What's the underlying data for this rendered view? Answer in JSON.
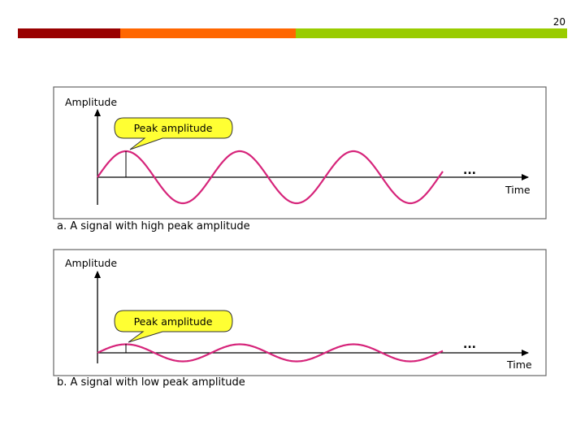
{
  "slide": {
    "page_number": "20"
  },
  "header_bar_colors": [
    "#990000",
    "#ff6600",
    "#99cc00"
  ],
  "signal_color": "#d6247a",
  "callout_color": "#ffff33",
  "panels": [
    {
      "y_label": "Amplitude",
      "x_label": "Time",
      "callout": "Peak amplitude",
      "continuation": "...",
      "caption": "a. A signal with high peak amplitude",
      "relative_amplitude": 1.0
    },
    {
      "y_label": "Amplitude",
      "x_label": "Time",
      "callout": "Peak amplitude",
      "continuation": "...",
      "caption": "b. A signal with low peak amplitude",
      "relative_amplitude": 0.33
    }
  ]
}
